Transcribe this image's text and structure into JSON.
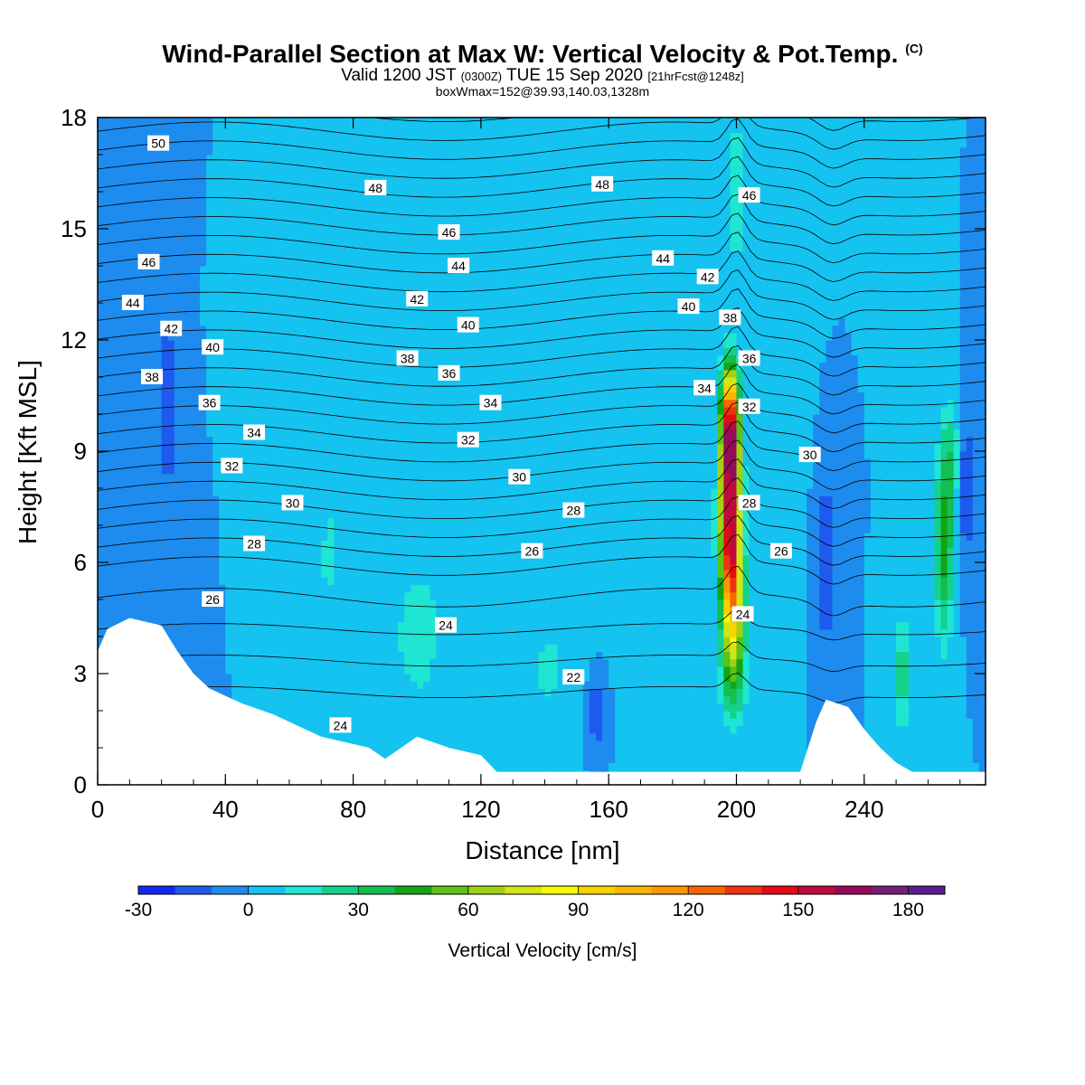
{
  "title": {
    "main": "Wind-Parallel Section at Max W: Vertical Velocity & Pot.Temp.",
    "copyright": "(C)",
    "valid_prefix": "Valid 1200 JST",
    "utc": "(0300Z)",
    "valid_date": "TUE 15 Sep 2020",
    "forecast": "[21hrFcst@1248z]",
    "box": "boxWmax=152@39.93,140.03,1328m"
  },
  "chart_data": {
    "type": "heatmap",
    "xlabel": "Distance [nm]",
    "ylabel": "Height [Kft MSL]",
    "xlim": [
      0,
      278
    ],
    "ylim": [
      0,
      18
    ],
    "x_ticks": [
      0,
      40,
      80,
      120,
      160,
      200,
      240
    ],
    "y_ticks": [
      0,
      3,
      6,
      9,
      12,
      15,
      18
    ],
    "colorbar": {
      "label": "Vertical Velocity [cm/s]",
      "min": -30,
      "max": 190,
      "step": 10,
      "tick_values": [
        -30,
        0,
        30,
        60,
        90,
        120,
        150,
        180
      ],
      "colors": [
        "#1428f0",
        "#1e5aee",
        "#1e8cee",
        "#14c3f0",
        "#1ee6d2",
        "#14d28c",
        "#14be50",
        "#14a514",
        "#5ac314",
        "#a0d214",
        "#d2e614",
        "#fafa00",
        "#fad200",
        "#fab400",
        "#fa9600",
        "#fa6400",
        "#f03214",
        "#e60a14",
        "#be0a3c",
        "#960a5a",
        "#781e78",
        "#5a1e8c"
      ]
    },
    "background_w_cms": 0,
    "terrain": [
      [
        0,
        3.6
      ],
      [
        3,
        4.2
      ],
      [
        10,
        4.5
      ],
      [
        20,
        4.3
      ],
      [
        25,
        3.6
      ],
      [
        30,
        3
      ],
      [
        35,
        2.6
      ],
      [
        45,
        2.2
      ],
      [
        55,
        1.9
      ],
      [
        70,
        1.3
      ],
      [
        85,
        1
      ],
      [
        90,
        0.7
      ],
      [
        95,
        1
      ],
      [
        100,
        1.3
      ],
      [
        110,
        1
      ],
      [
        120,
        0.8
      ],
      [
        125,
        0.35
      ],
      [
        200,
        0.35
      ],
      [
        220,
        0.35
      ],
      [
        225,
        1.7
      ],
      [
        228,
        2.3
      ],
      [
        235,
        2.1
      ],
      [
        240,
        1.5
      ],
      [
        245,
        1
      ],
      [
        250,
        0.6
      ],
      [
        255,
        0.35
      ],
      [
        278,
        0.35
      ]
    ],
    "velocity_features": [
      {
        "x": 12,
        "y": 15.5,
        "sx": 25,
        "sy": 7,
        "w": -5
      },
      {
        "x": 22,
        "y": 10,
        "sx": 3,
        "sy": 2.5,
        "w": -15
      },
      {
        "x": 45,
        "y": 14,
        "sx": 10,
        "sy": 4,
        "w": 10
      },
      {
        "x": 50,
        "y": 8,
        "sx": 6,
        "sy": 3,
        "w": 8
      },
      {
        "x": 72,
        "y": 6,
        "sx": 8,
        "sy": 4,
        "w": 10
      },
      {
        "x": 78,
        "y": 13,
        "sx": 6,
        "sy": 5,
        "w": 7
      },
      {
        "x": 100,
        "y": 4,
        "sx": 12,
        "sy": 3,
        "w": 12
      },
      {
        "x": 110,
        "y": 14,
        "sx": 10,
        "sy": 6,
        "w": 10
      },
      {
        "x": 140,
        "y": 3,
        "sx": 12,
        "sy": 2.5,
        "w": 10
      },
      {
        "x": 150,
        "y": 8,
        "sx": 10,
        "sy": 4,
        "w": 8
      },
      {
        "x": 160,
        "y": 14,
        "sx": 8,
        "sy": 5,
        "w": 8
      },
      {
        "x": 156,
        "y": 2,
        "sx": 3,
        "sy": 1.2,
        "w": -18
      },
      {
        "x": 178,
        "y": 5,
        "sx": 8,
        "sy": 3,
        "w": 8
      },
      {
        "x": 200,
        "y": 16,
        "sx": 3,
        "sy": 2,
        "w": 20
      },
      {
        "x": 198,
        "y": 7.5,
        "sx": 3,
        "sy": 2.5,
        "w": 150
      },
      {
        "x": 198,
        "y": 9.8,
        "sx": 2.6,
        "sy": 1.5,
        "w": 110
      },
      {
        "x": 199,
        "y": 5,
        "sx": 3.5,
        "sy": 2,
        "w": 70
      },
      {
        "x": 199,
        "y": 3,
        "sx": 4,
        "sy": 1.5,
        "w": 25
      },
      {
        "x": 215,
        "y": 12,
        "sx": 6,
        "sy": 4,
        "w": 10
      },
      {
        "x": 228,
        "y": 6,
        "sx": 3,
        "sy": 2.5,
        "w": -18
      },
      {
        "x": 252,
        "y": 3,
        "sx": 3,
        "sy": 1.6,
        "w": 25
      },
      {
        "x": 265,
        "y": 6.5,
        "sx": 3,
        "sy": 2.5,
        "w": 45
      },
      {
        "x": 267,
        "y": 9,
        "sx": 2.5,
        "sy": 1.5,
        "w": 20
      },
      {
        "x": 272,
        "y": 8,
        "sx": 2,
        "sy": 2,
        "w": -20
      }
    ],
    "theta_levels": [
      22,
      23,
      24,
      25,
      26,
      27,
      28,
      29,
      30,
      31,
      32,
      33,
      34,
      35,
      36,
      37,
      38,
      39,
      40,
      41,
      42,
      43,
      44,
      45,
      46,
      47,
      48,
      49,
      50
    ],
    "theta_labels": [
      {
        "x": 19,
        "y": 17.3,
        "text": "50"
      },
      {
        "x": 87,
        "y": 16.1,
        "text": "48"
      },
      {
        "x": 158,
        "y": 16.2,
        "text": "48"
      },
      {
        "x": 204,
        "y": 15.9,
        "text": "46"
      },
      {
        "x": 16,
        "y": 14.1,
        "text": "46"
      },
      {
        "x": 110,
        "y": 14.9,
        "text": "46"
      },
      {
        "x": 177,
        "y": 14.2,
        "text": "44"
      },
      {
        "x": 11,
        "y": 13.0,
        "text": "44"
      },
      {
        "x": 113,
        "y": 14.0,
        "text": "44"
      },
      {
        "x": 191,
        "y": 13.7,
        "text": "42"
      },
      {
        "x": 23,
        "y": 12.3,
        "text": "42"
      },
      {
        "x": 100,
        "y": 13.1,
        "text": "42"
      },
      {
        "x": 185,
        "y": 12.9,
        "text": "40"
      },
      {
        "x": 36,
        "y": 11.8,
        "text": "40"
      },
      {
        "x": 116,
        "y": 12.4,
        "text": "40"
      },
      {
        "x": 198,
        "y": 12.6,
        "text": "38"
      },
      {
        "x": 17,
        "y": 11.0,
        "text": "38"
      },
      {
        "x": 97,
        "y": 11.5,
        "text": "38"
      },
      {
        "x": 204,
        "y": 11.5,
        "text": "36"
      },
      {
        "x": 35,
        "y": 10.3,
        "text": "36"
      },
      {
        "x": 110,
        "y": 11.1,
        "text": "36"
      },
      {
        "x": 190,
        "y": 10.7,
        "text": "34"
      },
      {
        "x": 49,
        "y": 9.5,
        "text": "34"
      },
      {
        "x": 123,
        "y": 10.3,
        "text": "34"
      },
      {
        "x": 204,
        "y": 10.2,
        "text": "32"
      },
      {
        "x": 42,
        "y": 8.6,
        "text": "32"
      },
      {
        "x": 116,
        "y": 9.3,
        "text": "32"
      },
      {
        "x": 223,
        "y": 8.9,
        "text": "30"
      },
      {
        "x": 61,
        "y": 7.6,
        "text": "30"
      },
      {
        "x": 132,
        "y": 8.3,
        "text": "30"
      },
      {
        "x": 204,
        "y": 7.6,
        "text": "28"
      },
      {
        "x": 49,
        "y": 6.5,
        "text": "28"
      },
      {
        "x": 149,
        "y": 7.4,
        "text": "28"
      },
      {
        "x": 214,
        "y": 6.3,
        "text": "26"
      },
      {
        "x": 36,
        "y": 5.0,
        "text": "26"
      },
      {
        "x": 136,
        "y": 6.3,
        "text": "26"
      },
      {
        "x": 202,
        "y": 4.6,
        "text": "24"
      },
      {
        "x": 109,
        "y": 4.3,
        "text": "24"
      },
      {
        "x": 76,
        "y": 1.6,
        "text": "24"
      },
      {
        "x": 149,
        "y": 2.9,
        "text": "22"
      }
    ]
  }
}
